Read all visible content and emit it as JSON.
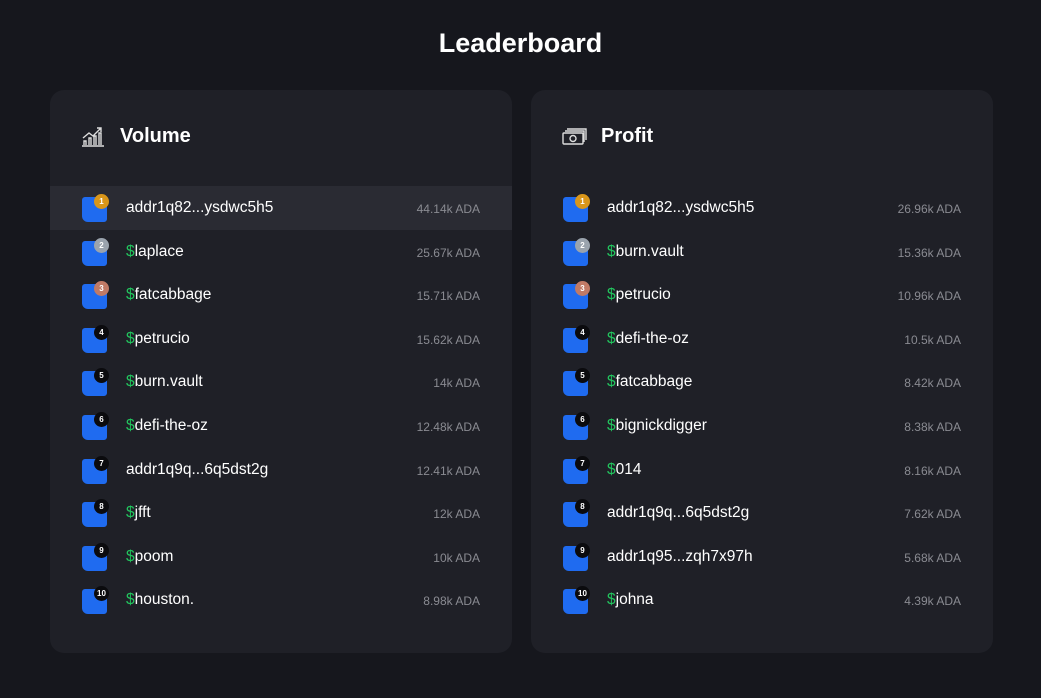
{
  "header": {
    "title": "Leaderboard"
  },
  "panels": [
    {
      "title": "Volume",
      "rows": [
        {
          "rank": 1,
          "name": "addr1q82...ysdwc5h5",
          "value": "44.14k ADA"
        },
        {
          "rank": 2,
          "prefix": "$",
          "name": "laplace",
          "value": "25.67k ADA"
        },
        {
          "rank": 3,
          "prefix": "$",
          "name": "fatcabbage",
          "value": "15.71k ADA"
        },
        {
          "rank": 4,
          "prefix": "$",
          "name": "petrucio",
          "value": "15.62k ADA"
        },
        {
          "rank": 5,
          "prefix": "$",
          "name": "burn.vault",
          "value": "14k ADA"
        },
        {
          "rank": 6,
          "prefix": "$",
          "name": "defi-the-oz",
          "value": "12.48k ADA"
        },
        {
          "rank": 7,
          "name": "addr1q9q...6q5dst2g",
          "value": "12.41k ADA"
        },
        {
          "rank": 8,
          "prefix": "$",
          "name": "jfft",
          "value": "12k ADA"
        },
        {
          "rank": 9,
          "prefix": "$",
          "name": "poom",
          "value": "10k ADA"
        },
        {
          "rank": 10,
          "prefix": "$",
          "name": "houston.",
          "value": "8.98k ADA"
        }
      ]
    },
    {
      "title": "Profit",
      "rows": [
        {
          "rank": 1,
          "name": "addr1q82...ysdwc5h5",
          "value": "26.96k ADA"
        },
        {
          "rank": 2,
          "prefix": "$",
          "name": "burn.vault",
          "value": "15.36k ADA"
        },
        {
          "rank": 3,
          "prefix": "$",
          "name": "petrucio",
          "value": "10.96k ADA"
        },
        {
          "rank": 4,
          "prefix": "$",
          "name": "defi-the-oz",
          "value": "10.5k ADA"
        },
        {
          "rank": 5,
          "prefix": "$",
          "name": "fatcabbage",
          "value": "8.42k ADA"
        },
        {
          "rank": 6,
          "prefix": "$",
          "name": "bignickdigger",
          "value": "8.38k ADA"
        },
        {
          "rank": 7,
          "prefix": "$",
          "name": "014",
          "value": "8.16k ADA"
        },
        {
          "rank": 8,
          "name": "addr1q9q...6q5dst2g",
          "value": "7.62k ADA"
        },
        {
          "rank": 9,
          "name": "addr1q95...zqh7x97h",
          "value": "5.68k ADA"
        },
        {
          "rank": 10,
          "prefix": "$",
          "name": "johna",
          "value": "4.39k ADA"
        }
      ]
    }
  ]
}
